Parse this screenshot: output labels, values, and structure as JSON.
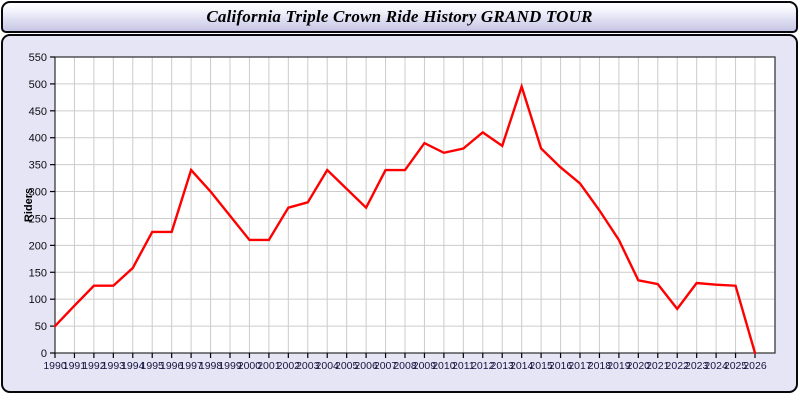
{
  "window": {
    "title": "California Triple Crown Ride History GRAND TOUR"
  },
  "colors": {
    "panel_bg": "#e5e5f6",
    "plot_bg": "#ffffff",
    "grid": "#cccccc",
    "axis": "#2b2b2b",
    "line": "#ff0000",
    "x_label_color": "#15153e",
    "y_label_color": "#0d0d12"
  },
  "chart_data": {
    "type": "line",
    "title": "California Triple Crown Ride History GRAND TOUR",
    "xlabel": "",
    "ylabel": "Riders",
    "ylim": [
      0,
      550
    ],
    "ytick_step": 50,
    "grid": true,
    "legend": "none",
    "x": [
      1990,
      1991,
      1992,
      1993,
      1994,
      1995,
      1996,
      1997,
      1998,
      1999,
      2000,
      2001,
      2002,
      2003,
      2004,
      2005,
      2006,
      2007,
      2008,
      2009,
      2010,
      2011,
      2012,
      2013,
      2014,
      2015,
      2016,
      2017,
      2018,
      2019,
      2020,
      2021,
      2022,
      2023,
      2024,
      2025,
      2026
    ],
    "series": [
      {
        "name": "Riders",
        "color": "#ff0000",
        "values": [
          50,
          88,
          125,
          125,
          158,
          225,
          225,
          340,
          300,
          255,
          210,
          210,
          270,
          280,
          340,
          305,
          270,
          340,
          340,
          390,
          372,
          380,
          410,
          385,
          495,
          380,
          345,
          315,
          265,
          210,
          135,
          128,
          82,
          130,
          127,
          125,
          0
        ]
      }
    ]
  }
}
